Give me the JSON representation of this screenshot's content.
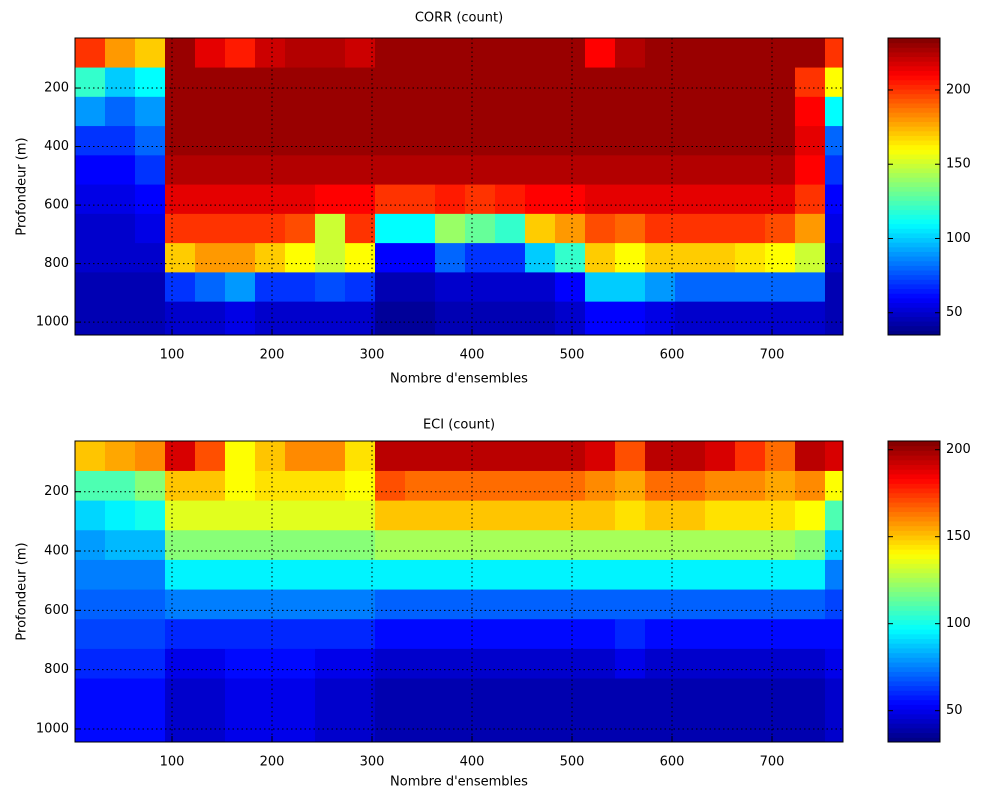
{
  "chart_data": [
    {
      "type": "heatmap",
      "title": "CORR (count)",
      "xlabel": "Nombre d'ensembles",
      "ylabel": "Profondeur (m)",
      "colormap": "jet",
      "grid": true,
      "xlim": [
        3,
        771
      ],
      "ylim": [
        29,
        1044
      ],
      "xticks": [
        100,
        200,
        300,
        400,
        500,
        600,
        700
      ],
      "yticks": [
        200,
        400,
        600,
        800,
        1000
      ],
      "clim": [
        35,
        235
      ],
      "cticks": [
        50,
        100,
        150,
        200
      ],
      "x": [
        18,
        48,
        78,
        108,
        138,
        168,
        198,
        228,
        258,
        288,
        318,
        348,
        378,
        408,
        438,
        468,
        498,
        528,
        558,
        588,
        618,
        648,
        678,
        708,
        738,
        768
      ],
      "y": [
        80,
        180,
        280,
        380,
        480,
        580,
        680,
        780,
        880,
        980
      ],
      "z": [
        [
          200,
          120,
          90,
          70,
          60,
          55,
          50,
          50,
          45,
          45
        ],
        [
          180,
          100,
          80,
          70,
          60,
          55,
          50,
          50,
          45,
          45
        ],
        [
          170,
          110,
          90,
          80,
          70,
          60,
          55,
          50,
          45,
          45
        ],
        [
          230,
          230,
          230,
          230,
          225,
          215,
          200,
          170,
          70,
          50
        ],
        [
          215,
          230,
          230,
          230,
          225,
          215,
          200,
          180,
          80,
          50
        ],
        [
          205,
          230,
          230,
          230,
          225,
          215,
          200,
          180,
          90,
          55
        ],
        [
          220,
          230,
          230,
          230,
          225,
          215,
          200,
          170,
          70,
          50
        ],
        [
          225,
          230,
          230,
          230,
          225,
          215,
          195,
          160,
          70,
          50
        ],
        [
          225,
          230,
          230,
          230,
          225,
          210,
          150,
          150,
          75,
          50
        ],
        [
          220,
          230,
          230,
          230,
          225,
          210,
          200,
          160,
          70,
          50
        ],
        [
          230,
          230,
          230,
          230,
          225,
          200,
          110,
          60,
          45,
          40
        ],
        [
          230,
          230,
          230,
          230,
          225,
          200,
          110,
          60,
          45,
          40
        ],
        [
          230,
          230,
          230,
          230,
          225,
          205,
          140,
          80,
          50,
          45
        ],
        [
          230,
          230,
          230,
          230,
          225,
          200,
          130,
          70,
          50,
          45
        ],
        [
          230,
          230,
          230,
          230,
          225,
          205,
          120,
          70,
          50,
          45
        ],
        [
          230,
          230,
          230,
          230,
          225,
          210,
          170,
          100,
          50,
          45
        ],
        [
          230,
          230,
          230,
          230,
          225,
          210,
          180,
          120,
          60,
          50
        ],
        [
          210,
          230,
          230,
          230,
          225,
          215,
          195,
          170,
          100,
          60
        ],
        [
          225,
          230,
          230,
          230,
          225,
          215,
          190,
          160,
          100,
          60
        ],
        [
          230,
          230,
          230,
          230,
          225,
          215,
          200,
          170,
          90,
          55
        ],
        [
          230,
          230,
          230,
          230,
          225,
          215,
          200,
          170,
          80,
          50
        ],
        [
          230,
          230,
          230,
          230,
          225,
          215,
          200,
          170,
          80,
          50
        ],
        [
          230,
          230,
          230,
          230,
          225,
          215,
          200,
          165,
          80,
          50
        ],
        [
          230,
          230,
          230,
          230,
          225,
          215,
          195,
          160,
          80,
          50
        ],
        [
          230,
          200,
          210,
          215,
          210,
          200,
          180,
          150,
          80,
          50
        ],
        [
          200,
          160,
          110,
          80,
          70,
          60,
          55,
          50,
          45,
          45
        ]
      ]
    },
    {
      "type": "heatmap",
      "title": "ECI (count)",
      "xlabel": "Nombre d'ensembles",
      "ylabel": "Profondeur (m)",
      "colormap": "jet",
      "grid": true,
      "xlim": [
        3,
        771
      ],
      "ylim": [
        29,
        1044
      ],
      "xticks": [
        100,
        200,
        300,
        400,
        500,
        600,
        700
      ],
      "yticks": [
        200,
        400,
        600,
        800,
        1000
      ],
      "clim": [
        32,
        205
      ],
      "cticks": [
        50,
        100,
        150,
        200
      ],
      "x": [
        18,
        48,
        78,
        108,
        138,
        168,
        198,
        228,
        258,
        288,
        318,
        348,
        378,
        408,
        438,
        468,
        498,
        528,
        558,
        588,
        618,
        648,
        678,
        708,
        738,
        768
      ],
      "y": [
        80,
        180,
        280,
        380,
        480,
        580,
        680,
        780,
        880,
        980
      ],
      "z": [
        [
          150,
          110,
          90,
          80,
          75,
          70,
          65,
          60,
          55,
          55
        ],
        [
          155,
          110,
          95,
          85,
          75,
          70,
          65,
          60,
          55,
          55
        ],
        [
          160,
          120,
          100,
          85,
          75,
          70,
          65,
          60,
          55,
          55
        ],
        [
          190,
          150,
          135,
          120,
          95,
          75,
          60,
          50,
          45,
          45
        ],
        [
          170,
          150,
          135,
          120,
          95,
          75,
          60,
          50,
          45,
          45
        ],
        [
          140,
          140,
          135,
          120,
          95,
          75,
          60,
          55,
          50,
          50
        ],
        [
          150,
          145,
          135,
          120,
          95,
          75,
          60,
          55,
          50,
          50
        ],
        [
          160,
          145,
          135,
          120,
          95,
          75,
          60,
          55,
          50,
          50
        ],
        [
          160,
          145,
          135,
          120,
          95,
          75,
          60,
          50,
          45,
          45
        ],
        [
          145,
          140,
          135,
          120,
          95,
          75,
          60,
          50,
          45,
          45
        ],
        [
          195,
          170,
          150,
          125,
          95,
          70,
          55,
          45,
          40,
          40
        ],
        [
          195,
          165,
          150,
          125,
          95,
          70,
          55,
          45,
          40,
          40
        ],
        [
          195,
          165,
          150,
          125,
          95,
          70,
          55,
          45,
          40,
          40
        ],
        [
          195,
          165,
          150,
          125,
          95,
          70,
          55,
          45,
          40,
          40
        ],
        [
          195,
          165,
          150,
          125,
          95,
          70,
          55,
          45,
          40,
          40
        ],
        [
          195,
          165,
          150,
          125,
          95,
          70,
          55,
          45,
          40,
          40
        ],
        [
          195,
          165,
          150,
          125,
          95,
          70,
          55,
          45,
          40,
          40
        ],
        [
          190,
          160,
          150,
          125,
          95,
          70,
          55,
          45,
          40,
          40
        ],
        [
          170,
          155,
          145,
          125,
          95,
          70,
          60,
          50,
          40,
          40
        ],
        [
          195,
          165,
          150,
          125,
          95,
          70,
          55,
          45,
          40,
          40
        ],
        [
          195,
          165,
          150,
          125,
          95,
          70,
          55,
          45,
          40,
          40
        ],
        [
          190,
          160,
          145,
          125,
          95,
          70,
          55,
          45,
          40,
          40
        ],
        [
          175,
          160,
          145,
          125,
          95,
          70,
          55,
          45,
          40,
          40
        ],
        [
          165,
          155,
          145,
          125,
          95,
          70,
          55,
          45,
          40,
          40
        ],
        [
          195,
          160,
          140,
          120,
          95,
          70,
          55,
          45,
          40,
          40
        ],
        [
          190,
          140,
          110,
          90,
          75,
          65,
          55,
          50,
          45,
          45
        ]
      ]
    }
  ]
}
